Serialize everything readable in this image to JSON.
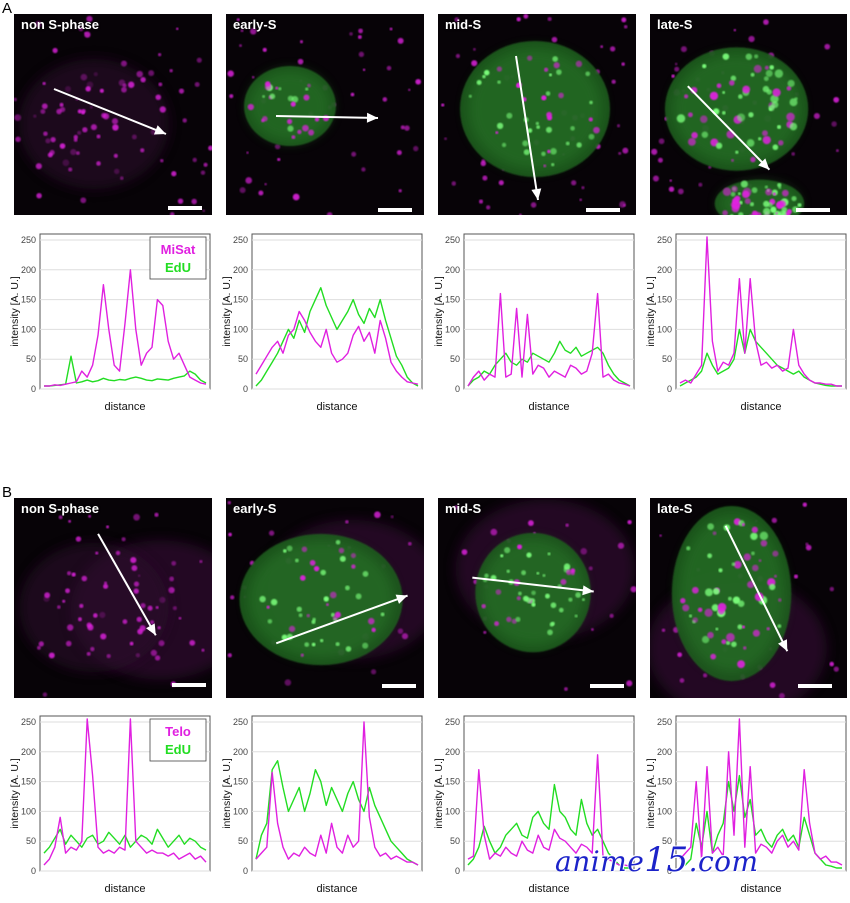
{
  "panels": [
    {
      "label": "A"
    },
    {
      "label": "B"
    }
  ],
  "images": [
    {
      "title": "non S-phase"
    },
    {
      "title": "early-S"
    },
    {
      "title": "mid-S"
    },
    {
      "title": "late-S"
    },
    {
      "title": "non S-phase"
    },
    {
      "title": "early-S"
    },
    {
      "title": "mid-S"
    },
    {
      "title": "late-S"
    }
  ],
  "colors": {
    "magenta": "#e020e0",
    "green": "#22dd22",
    "background": "#070307"
  },
  "chart_data": [
    {
      "type": "line",
      "xlabel": "distance",
      "ylabel": "intensity [A. U.]",
      "ylim": [
        0,
        250
      ],
      "yticks": [
        0,
        50,
        100,
        150,
        200,
        250
      ],
      "legend": [
        "MiSat",
        "EdU"
      ],
      "series": [
        {
          "name": "MiSat",
          "color": "magenta",
          "values": [
            5,
            5,
            7,
            6,
            8,
            10,
            12,
            30,
            20,
            40,
            90,
            175,
            100,
            40,
            30,
            110,
            200,
            100,
            40,
            60,
            70,
            150,
            140,
            80,
            50,
            60,
            40,
            20,
            15,
            10,
            8
          ]
        },
        {
          "name": "EdU",
          "color": "green",
          "values": [
            5,
            5,
            6,
            7,
            8,
            55,
            10,
            12,
            15,
            12,
            14,
            18,
            15,
            14,
            16,
            15,
            18,
            20,
            18,
            15,
            14,
            17,
            16,
            15,
            18,
            20,
            22,
            30,
            25,
            15,
            10
          ]
        }
      ]
    },
    {
      "type": "line",
      "xlabel": "distance",
      "ylabel": "intensity [A. U.]",
      "ylim": [
        0,
        250
      ],
      "yticks": [
        0,
        50,
        100,
        150,
        200,
        250
      ],
      "series": [
        {
          "name": "MiSat",
          "color": "magenta",
          "values": [
            25,
            40,
            55,
            70,
            80,
            60,
            90,
            100,
            130,
            115,
            95,
            80,
            70,
            100,
            60,
            45,
            50,
            60,
            90,
            105,
            80,
            95,
            60,
            115,
            85,
            45,
            30,
            20,
            12,
            10,
            8
          ]
        },
        {
          "name": "EdU",
          "color": "green",
          "values": [
            5,
            15,
            30,
            45,
            60,
            80,
            100,
            85,
            115,
            95,
            130,
            150,
            170,
            140,
            120,
            100,
            115,
            130,
            150,
            125,
            110,
            135,
            120,
            150,
            115,
            85,
            55,
            40,
            20,
            10,
            5
          ]
        }
      ]
    },
    {
      "type": "line",
      "xlabel": "distance",
      "ylabel": "intensity [A. U.]",
      "ylim": [
        0,
        250
      ],
      "yticks": [
        0,
        50,
        100,
        150,
        200,
        250
      ],
      "series": [
        {
          "name": "MiSat",
          "color": "magenta",
          "values": [
            5,
            20,
            30,
            15,
            25,
            20,
            160,
            20,
            25,
            135,
            20,
            125,
            25,
            40,
            35,
            20,
            30,
            25,
            20,
            40,
            35,
            25,
            30,
            60,
            160,
            20,
            25,
            15,
            10,
            8,
            5
          ]
        },
        {
          "name": "EdU",
          "color": "green",
          "values": [
            5,
            15,
            20,
            30,
            25,
            40,
            50,
            60,
            45,
            40,
            50,
            45,
            60,
            55,
            50,
            45,
            60,
            80,
            65,
            60,
            70,
            55,
            60,
            65,
            70,
            60,
            40,
            25,
            15,
            10,
            5
          ]
        }
      ]
    },
    {
      "type": "line",
      "xlabel": "distance",
      "ylabel": "intensity [A. U.]",
      "ylim": [
        0,
        250
      ],
      "yticks": [
        0,
        50,
        100,
        150,
        200,
        250
      ],
      "series": [
        {
          "name": "MiSat",
          "color": "magenta",
          "values": [
            10,
            15,
            10,
            25,
            40,
            255,
            80,
            30,
            45,
            40,
            60,
            185,
            60,
            185,
            80,
            40,
            45,
            35,
            40,
            30,
            35,
            100,
            40,
            25,
            15,
            10,
            10,
            8,
            8,
            5,
            5
          ]
        },
        {
          "name": "EdU",
          "color": "green",
          "values": [
            5,
            10,
            15,
            20,
            30,
            60,
            40,
            25,
            30,
            35,
            50,
            100,
            60,
            100,
            80,
            70,
            60,
            50,
            40,
            35,
            30,
            25,
            30,
            20,
            15,
            10,
            8,
            6,
            5,
            5,
            5
          ]
        }
      ]
    },
    {
      "type": "line",
      "xlabel": "distance",
      "ylabel": "intensity [A. U.]",
      "ylim": [
        0,
        250
      ],
      "yticks": [
        0,
        50,
        100,
        150,
        200,
        250
      ],
      "legend": [
        "Telo",
        "EdU"
      ],
      "series": [
        {
          "name": "Telo",
          "color": "magenta",
          "values": [
            10,
            20,
            40,
            90,
            30,
            40,
            35,
            50,
            255,
            160,
            40,
            30,
            35,
            30,
            40,
            35,
            255,
            50,
            40,
            30,
            35,
            30,
            30,
            25,
            30,
            20,
            25,
            30,
            20,
            25,
            15
          ]
        },
        {
          "name": "EdU",
          "color": "green",
          "values": [
            30,
            40,
            55,
            70,
            45,
            60,
            50,
            40,
            55,
            60,
            45,
            50,
            65,
            55,
            45,
            60,
            40,
            50,
            60,
            55,
            45,
            70,
            55,
            40,
            50,
            60,
            45,
            55,
            50,
            40,
            35
          ]
        }
      ]
    },
    {
      "type": "line",
      "xlabel": "distance",
      "ylabel": "intensity [A. U.]",
      "ylim": [
        0,
        250
      ],
      "yticks": [
        0,
        50,
        100,
        150,
        200,
        250
      ],
      "series": [
        {
          "name": "MiSat",
          "color": "magenta",
          "values": [
            20,
            30,
            40,
            165,
            80,
            40,
            20,
            30,
            25,
            40,
            30,
            25,
            60,
            30,
            80,
            40,
            30,
            60,
            40,
            50,
            250,
            90,
            40,
            25,
            30,
            20,
            25,
            20,
            15,
            15,
            10
          ]
        },
        {
          "name": "EdU",
          "color": "green",
          "values": [
            20,
            60,
            80,
            170,
            185,
            140,
            100,
            120,
            140,
            100,
            130,
            170,
            150,
            110,
            140,
            120,
            100,
            130,
            150,
            120,
            100,
            140,
            110,
            90,
            70,
            50,
            40,
            30,
            20,
            15,
            10
          ]
        }
      ]
    },
    {
      "type": "line",
      "xlabel": "distance",
      "ylabel": "intensity [A. U.]",
      "ylim": [
        0,
        250
      ],
      "yticks": [
        0,
        50,
        100,
        150,
        200,
        250
      ],
      "series": [
        {
          "name": "MiSat",
          "color": "magenta",
          "values": [
            20,
            25,
            170,
            60,
            20,
            30,
            25,
            40,
            30,
            25,
            50,
            35,
            30,
            60,
            40,
            35,
            70,
            55,
            50,
            40,
            30,
            45,
            40,
            30,
            195,
            25,
            20,
            15,
            10,
            10,
            8
          ]
        },
        {
          "name": "EdU",
          "color": "green",
          "values": [
            10,
            20,
            40,
            75,
            50,
            30,
            40,
            60,
            70,
            80,
            60,
            55,
            90,
            100,
            80,
            70,
            145,
            100,
            90,
            70,
            60,
            120,
            80,
            60,
            70,
            50,
            30,
            20,
            10,
            5,
            5
          ]
        }
      ]
    },
    {
      "type": "line",
      "xlabel": "distance",
      "ylabel": "intensity [A. U.]",
      "ylim": [
        0,
        250
      ],
      "yticks": [
        0,
        50,
        100,
        150,
        200,
        250
      ],
      "series": [
        {
          "name": "MiSat",
          "color": "magenta",
          "values": [
            20,
            30,
            40,
            150,
            20,
            175,
            30,
            40,
            25,
            200,
            60,
            255,
            40,
            175,
            30,
            45,
            40,
            30,
            50,
            60,
            40,
            50,
            35,
            170,
            80,
            30,
            20,
            25,
            15,
            15,
            10
          ]
        },
        {
          "name": "EdU",
          "color": "green",
          "values": [
            5,
            10,
            20,
            80,
            40,
            100,
            30,
            60,
            80,
            150,
            100,
            160,
            90,
            120,
            60,
            70,
            50,
            40,
            60,
            70,
            50,
            60,
            40,
            90,
            60,
            30,
            20,
            10,
            8,
            5,
            5
          ]
        }
      ]
    }
  ]
}
